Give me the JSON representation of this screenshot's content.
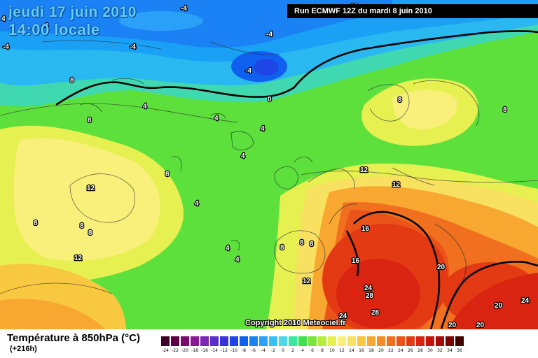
{
  "header": {
    "date_line": "jeudi 17 juin 2010",
    "time_line": "14:00 locale",
    "run_label": "Run ECMWF 12Z du mardi 8 juin 2010"
  },
  "map": {
    "copyright": "Copyright 2010 Meteociel.fr",
    "contour_labels": [
      "-4",
      "-4",
      "-4",
      "-4",
      "-4",
      "-4",
      "0",
      "4",
      "4",
      "4",
      "4",
      "4",
      "4",
      "4",
      "4",
      "8",
      "8",
      "8",
      "8",
      "8",
      "8",
      "8",
      "8",
      "8",
      "8",
      "8",
      "12",
      "12",
      "12",
      "12",
      "12",
      "12",
      "16",
      "16",
      "20",
      "20",
      "20",
      "20",
      "24",
      "24",
      "24",
      "28",
      "28"
    ]
  },
  "legend": {
    "title": "Température à 850hPa (°C)",
    "lead_time": "(+216h)",
    "ticks": [
      "-24",
      "-22",
      "-20",
      "-18",
      "-16",
      "-14",
      "-12",
      "-10",
      "-8",
      "-6",
      "-4",
      "-2",
      "0",
      "2",
      "4",
      "6",
      "8",
      "10",
      "12",
      "14",
      "16",
      "18",
      "20",
      "22",
      "24",
      "26",
      "28",
      "30",
      "32",
      "34",
      "36"
    ],
    "colors": [
      "#3d0029",
      "#5c0045",
      "#7a0a6e",
      "#8c1a96",
      "#7a28b4",
      "#5a2ec8",
      "#3a34d8",
      "#1e46e6",
      "#1060f0",
      "#1a82f5",
      "#2aa0f8",
      "#38c0f8",
      "#50d8e8",
      "#3ae8a0",
      "#40e050",
      "#7ae63c",
      "#b4ec40",
      "#e6f050",
      "#f8f07a",
      "#f8e060",
      "#f8c840",
      "#f8a830",
      "#f48c28",
      "#f07020",
      "#ea5418",
      "#e43a14",
      "#d82410",
      "#c4140c",
      "#a80c08",
      "#780404",
      "#400000"
    ]
  }
}
